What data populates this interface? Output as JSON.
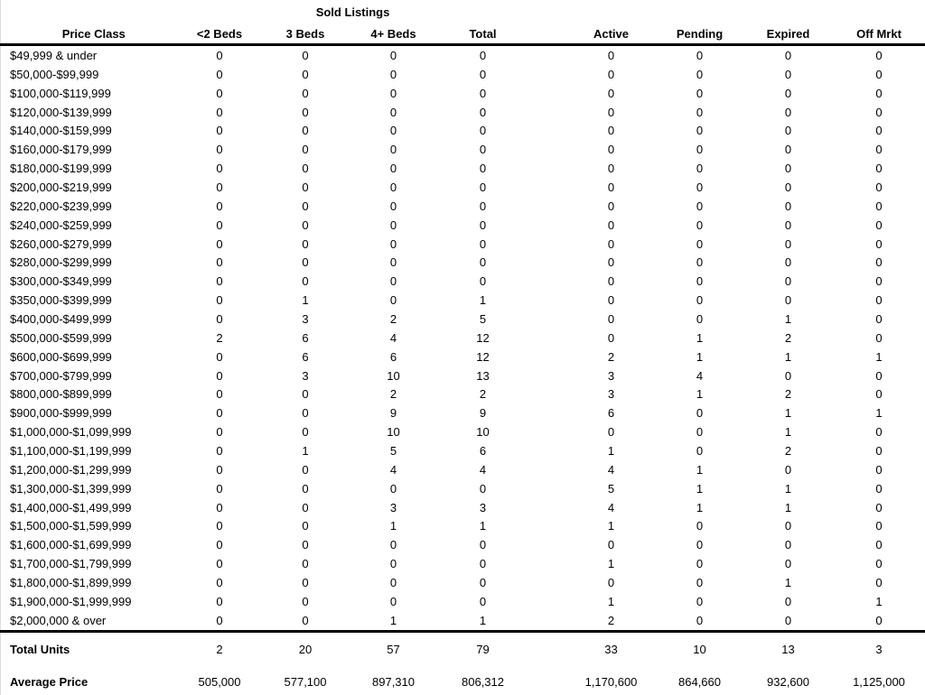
{
  "report": {
    "group_header": "Sold Listings",
    "columns": [
      "Price Class",
      "<2 Beds",
      "3 Beds",
      "4+ Beds",
      "Total",
      "Active",
      "Pending",
      "Expired",
      "Off Mrkt"
    ],
    "rows": [
      {
        "price_class": "$49,999 & under",
        "values": [
          "0",
          "0",
          "0",
          "0",
          "0",
          "0",
          "0",
          "0"
        ]
      },
      {
        "price_class": "$50,000-$99,999",
        "values": [
          "0",
          "0",
          "0",
          "0",
          "0",
          "0",
          "0",
          "0"
        ]
      },
      {
        "price_class": "$100,000-$119,999",
        "values": [
          "0",
          "0",
          "0",
          "0",
          "0",
          "0",
          "0",
          "0"
        ]
      },
      {
        "price_class": "$120,000-$139,999",
        "values": [
          "0",
          "0",
          "0",
          "0",
          "0",
          "0",
          "0",
          "0"
        ]
      },
      {
        "price_class": "$140,000-$159,999",
        "values": [
          "0",
          "0",
          "0",
          "0",
          "0",
          "0",
          "0",
          "0"
        ]
      },
      {
        "price_class": "$160,000-$179,999",
        "values": [
          "0",
          "0",
          "0",
          "0",
          "0",
          "0",
          "0",
          "0"
        ]
      },
      {
        "price_class": "$180,000-$199,999",
        "values": [
          "0",
          "0",
          "0",
          "0",
          "0",
          "0",
          "0",
          "0"
        ]
      },
      {
        "price_class": "$200,000-$219,999",
        "values": [
          "0",
          "0",
          "0",
          "0",
          "0",
          "0",
          "0",
          "0"
        ]
      },
      {
        "price_class": "$220,000-$239,999",
        "values": [
          "0",
          "0",
          "0",
          "0",
          "0",
          "0",
          "0",
          "0"
        ]
      },
      {
        "price_class": "$240,000-$259,999",
        "values": [
          "0",
          "0",
          "0",
          "0",
          "0",
          "0",
          "0",
          "0"
        ]
      },
      {
        "price_class": "$260,000-$279,999",
        "values": [
          "0",
          "0",
          "0",
          "0",
          "0",
          "0",
          "0",
          "0"
        ]
      },
      {
        "price_class": "$280,000-$299,999",
        "values": [
          "0",
          "0",
          "0",
          "0",
          "0",
          "0",
          "0",
          "0"
        ]
      },
      {
        "price_class": "$300,000-$349,999",
        "values": [
          "0",
          "0",
          "0",
          "0",
          "0",
          "0",
          "0",
          "0"
        ]
      },
      {
        "price_class": "$350,000-$399,999",
        "values": [
          "0",
          "1",
          "0",
          "1",
          "0",
          "0",
          "0",
          "0"
        ]
      },
      {
        "price_class": "$400,000-$499,999",
        "values": [
          "0",
          "3",
          "2",
          "5",
          "0",
          "0",
          "1",
          "0"
        ]
      },
      {
        "price_class": "$500,000-$599,999",
        "values": [
          "2",
          "6",
          "4",
          "12",
          "0",
          "1",
          "2",
          "0"
        ]
      },
      {
        "price_class": "$600,000-$699,999",
        "values": [
          "0",
          "6",
          "6",
          "12",
          "2",
          "1",
          "1",
          "1"
        ]
      },
      {
        "price_class": "$700,000-$799,999",
        "values": [
          "0",
          "3",
          "10",
          "13",
          "3",
          "4",
          "0",
          "0"
        ]
      },
      {
        "price_class": "$800,000-$899,999",
        "values": [
          "0",
          "0",
          "2",
          "2",
          "3",
          "1",
          "2",
          "0"
        ]
      },
      {
        "price_class": "$900,000-$999,999",
        "values": [
          "0",
          "0",
          "9",
          "9",
          "6",
          "0",
          "1",
          "1"
        ]
      },
      {
        "price_class": "$1,000,000-$1,099,999",
        "values": [
          "0",
          "0",
          "10",
          "10",
          "0",
          "0",
          "1",
          "0"
        ]
      },
      {
        "price_class": "$1,100,000-$1,199,999",
        "values": [
          "0",
          "1",
          "5",
          "6",
          "1",
          "0",
          "2",
          "0"
        ]
      },
      {
        "price_class": "$1,200,000-$1,299,999",
        "values": [
          "0",
          "0",
          "4",
          "4",
          "4",
          "1",
          "0",
          "0"
        ]
      },
      {
        "price_class": "$1,300,000-$1,399,999",
        "values": [
          "0",
          "0",
          "0",
          "0",
          "5",
          "1",
          "1",
          "0"
        ]
      },
      {
        "price_class": "$1,400,000-$1,499,999",
        "values": [
          "0",
          "0",
          "3",
          "3",
          "4",
          "1",
          "1",
          "0"
        ]
      },
      {
        "price_class": "$1,500,000-$1,599,999",
        "values": [
          "0",
          "0",
          "1",
          "1",
          "1",
          "0",
          "0",
          "0"
        ]
      },
      {
        "price_class": "$1,600,000-$1,699,999",
        "values": [
          "0",
          "0",
          "0",
          "0",
          "0",
          "0",
          "0",
          "0"
        ]
      },
      {
        "price_class": "$1,700,000-$1,799,999",
        "values": [
          "0",
          "0",
          "0",
          "0",
          "1",
          "0",
          "0",
          "0"
        ]
      },
      {
        "price_class": "$1,800,000-$1,899,999",
        "values": [
          "0",
          "0",
          "0",
          "0",
          "0",
          "0",
          "1",
          "0"
        ]
      },
      {
        "price_class": "$1,900,000-$1,999,999",
        "values": [
          "0",
          "0",
          "0",
          "0",
          "1",
          "0",
          "0",
          "1"
        ]
      },
      {
        "price_class": "$2,000,000 & over",
        "values": [
          "0",
          "0",
          "1",
          "1",
          "2",
          "0",
          "0",
          "0"
        ]
      }
    ],
    "total_units": {
      "label": "Total Units",
      "values": [
        "2",
        "20",
        "57",
        "79",
        "33",
        "10",
        "13",
        "3"
      ]
    },
    "average_price": {
      "label": "Average Price",
      "values": [
        "505,000",
        "577,100",
        "897,310",
        "806,312",
        "1,170,600",
        "864,660",
        "932,600",
        "1,125,000"
      ]
    }
  }
}
